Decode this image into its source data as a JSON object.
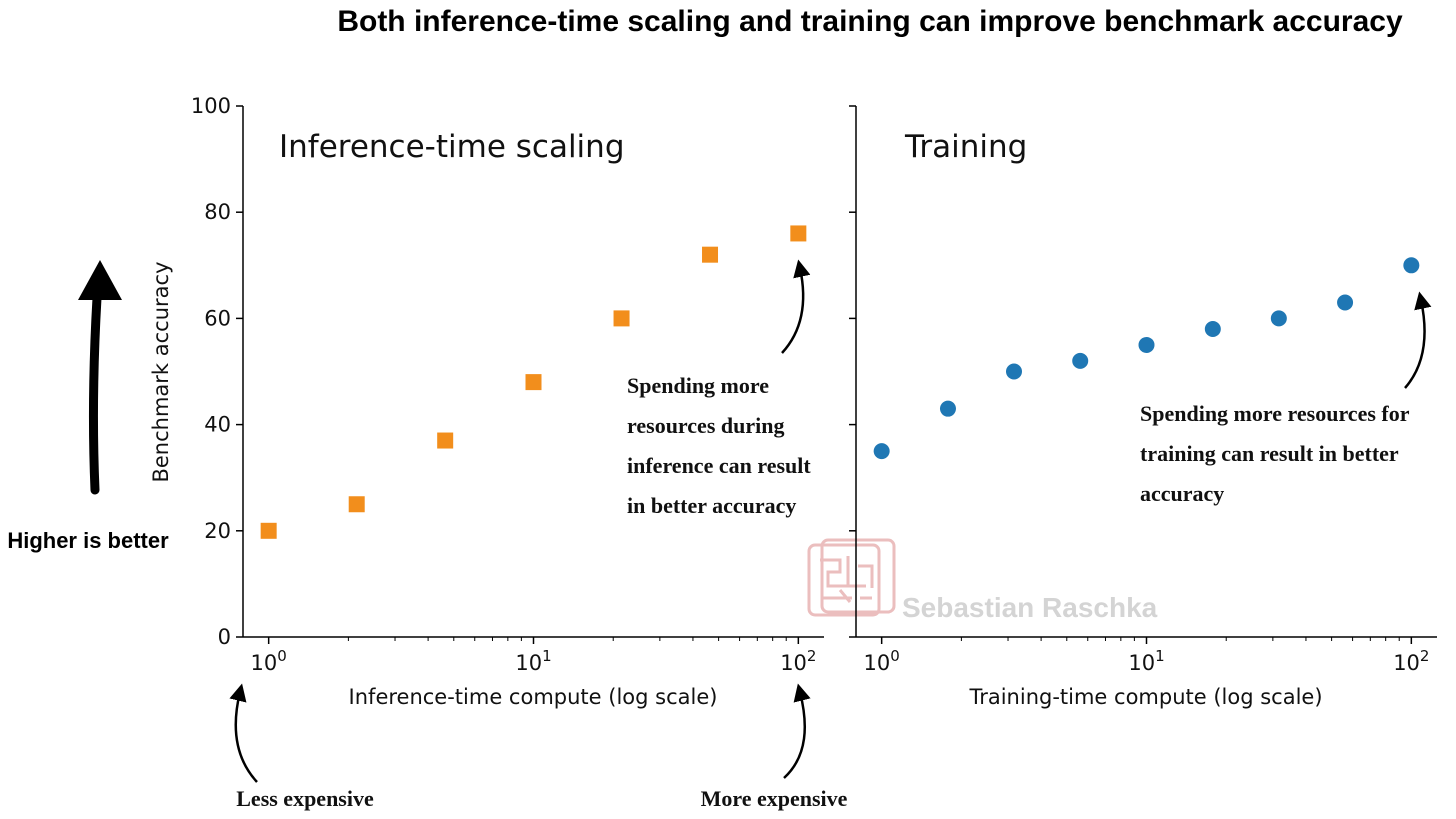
{
  "figure_title": "Both inference-time scaling and training can improve benchmark accuracy",
  "watermark": "Sebastian Raschka",
  "side_note": "Higher is better",
  "cost_labels": {
    "low": "Less expensive",
    "high": "More expensive"
  },
  "colors": {
    "inference": "#f28e1c",
    "training": "#1f77b4",
    "axis": "#000000",
    "watermark": "#e8b3b3"
  },
  "chart_data": [
    {
      "type": "scatter",
      "title": "Inference-time scaling",
      "xlabel": "Inference-time compute (log scale)",
      "ylabel": "Benchmark accuracy",
      "xscale": "log",
      "xlim": [
        0.8,
        125
      ],
      "ylim": [
        0,
        100
      ],
      "yticks": [
        0,
        20,
        40,
        60,
        80,
        100
      ],
      "xticks": [
        1,
        10,
        100
      ],
      "xtick_labels": [
        {
          "base": "10",
          "exp": "0"
        },
        {
          "base": "10",
          "exp": "1"
        },
        {
          "base": "10",
          "exp": "2"
        }
      ],
      "marker": "square",
      "color": "#f28e1c",
      "x": [
        1,
        2.15,
        4.64,
        10,
        21.5,
        46.4,
        100
      ],
      "y": [
        20,
        25,
        37,
        48,
        60,
        72,
        76
      ],
      "annotation": [
        "Spending more",
        "resources during",
        "inference can result",
        "in better accuracy"
      ]
    },
    {
      "type": "scatter",
      "title": "Training",
      "xlabel": "Training-time compute (log scale)",
      "ylabel": "",
      "xscale": "log",
      "xlim": [
        0.8,
        125
      ],
      "ylim": [
        0,
        100
      ],
      "xticks": [
        1,
        10,
        100
      ],
      "xtick_labels": [
        {
          "base": "10",
          "exp": "0"
        },
        {
          "base": "10",
          "exp": "1"
        },
        {
          "base": "10",
          "exp": "2"
        }
      ],
      "marker": "circle",
      "color": "#1f77b4",
      "x": [
        1,
        1.78,
        3.16,
        5.62,
        10,
        17.8,
        31.6,
        56.2,
        100
      ],
      "y": [
        35,
        43,
        50,
        52,
        55,
        58,
        60,
        63,
        70
      ],
      "annotation": [
        "Spending more resources for",
        "training can result in better",
        "accuracy"
      ]
    }
  ]
}
